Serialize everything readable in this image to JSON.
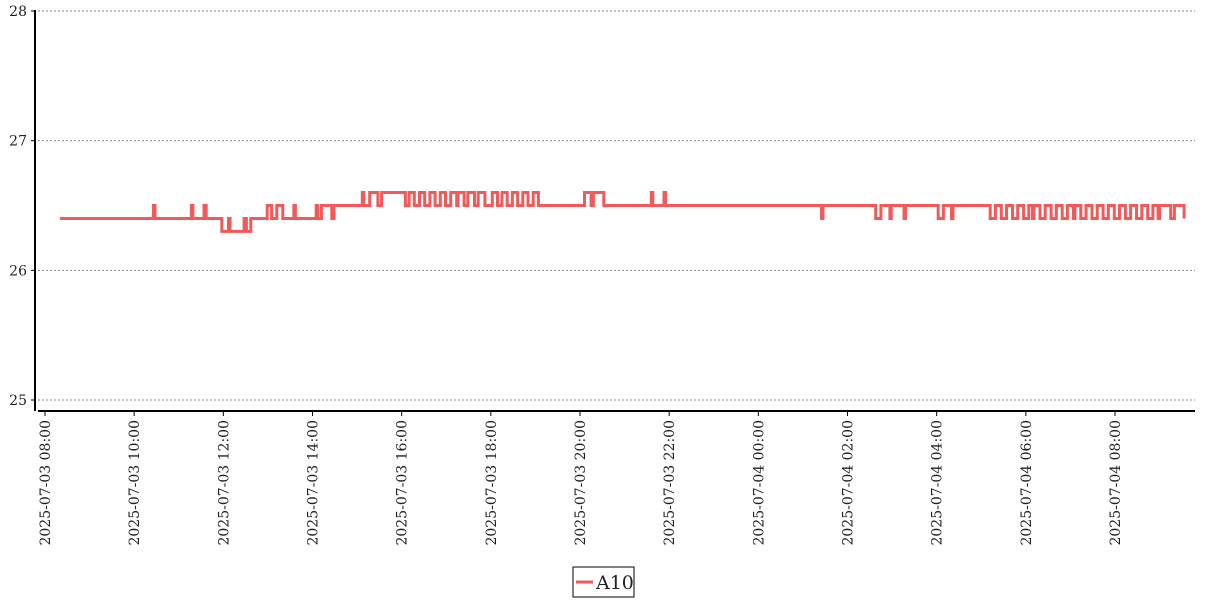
{
  "chart_data": {
    "type": "line",
    "x_axis_type": "datetime",
    "xlim": [
      "2025-07-03 07:55",
      "2025-07-04 09:55"
    ],
    "ylim": [
      24.92,
      28
    ],
    "y_ticks": [
      25,
      26,
      27,
      28
    ],
    "y_tick_labels": [
      "25",
      "26",
      "27",
      "28"
    ],
    "x_ticks": [
      "2025-07-03 08:00",
      "2025-07-03 10:00",
      "2025-07-03 12:00",
      "2025-07-03 14:00",
      "2025-07-03 16:00",
      "2025-07-03 18:00",
      "2025-07-03 20:00",
      "2025-07-03 22:00",
      "2025-07-04 00:00",
      "2025-07-04 02:00",
      "2025-07-04 04:00",
      "2025-07-04 06:00",
      "2025-07-04 08:00"
    ],
    "x_tick_labels": [
      "2025-07-03 08:00",
      "2025-07-03 10:00",
      "2025-07-03 12:00",
      "2025-07-03 14:00",
      "2025-07-03 16:00",
      "2025-07-03 18:00",
      "2025-07-03 20:00",
      "2025-07-03 22:00",
      "2025-07-04 00:00",
      "2025-07-04 02:00",
      "2025-07-04 04:00",
      "2025-07-04 06:00",
      "2025-07-04 08:00"
    ],
    "grid": {
      "y": true,
      "x": false,
      "style": "dotted"
    },
    "legend_position": "bottom-center",
    "series": [
      {
        "name": "A10",
        "color": "#f05a5a",
        "points": [
          [
            "2025-07-03 08:20",
            26.4
          ],
          [
            "2025-07-03 10:26",
            26.4
          ],
          [
            "2025-07-03 10:26",
            26.5
          ],
          [
            "2025-07-03 10:28",
            26.5
          ],
          [
            "2025-07-03 10:28",
            26.4
          ],
          [
            "2025-07-03 11:17",
            26.4
          ],
          [
            "2025-07-03 11:17",
            26.5
          ],
          [
            "2025-07-03 11:19",
            26.5
          ],
          [
            "2025-07-03 11:19",
            26.4
          ],
          [
            "2025-07-03 11:34",
            26.4
          ],
          [
            "2025-07-03 11:34",
            26.5
          ],
          [
            "2025-07-03 11:37",
            26.5
          ],
          [
            "2025-07-03 11:37",
            26.4
          ],
          [
            "2025-07-03 11:58",
            26.4
          ],
          [
            "2025-07-03 11:58",
            26.3
          ],
          [
            "2025-07-03 12:07",
            26.3
          ],
          [
            "2025-07-03 12:07",
            26.4
          ],
          [
            "2025-07-03 12:09",
            26.4
          ],
          [
            "2025-07-03 12:09",
            26.3
          ],
          [
            "2025-07-03 12:28",
            26.3
          ],
          [
            "2025-07-03 12:28",
            26.4
          ],
          [
            "2025-07-03 12:31",
            26.4
          ],
          [
            "2025-07-03 12:31",
            26.3
          ],
          [
            "2025-07-03 12:37",
            26.3
          ],
          [
            "2025-07-03 12:37",
            26.4
          ],
          [
            "2025-07-03 12:59",
            26.4
          ],
          [
            "2025-07-03 12:59",
            26.5
          ],
          [
            "2025-07-03 13:05",
            26.5
          ],
          [
            "2025-07-03 13:05",
            26.4
          ],
          [
            "2025-07-03 13:12",
            26.4
          ],
          [
            "2025-07-03 13:12",
            26.5
          ],
          [
            "2025-07-03 13:20",
            26.5
          ],
          [
            "2025-07-03 13:20",
            26.4
          ],
          [
            "2025-07-03 13:35",
            26.4
          ],
          [
            "2025-07-03 13:35",
            26.5
          ],
          [
            "2025-07-03 13:37",
            26.5
          ],
          [
            "2025-07-03 13:37",
            26.4
          ],
          [
            "2025-07-03 14:05",
            26.4
          ],
          [
            "2025-07-03 14:05",
            26.5
          ],
          [
            "2025-07-03 14:07",
            26.5
          ],
          [
            "2025-07-03 14:07",
            26.4
          ],
          [
            "2025-07-03 14:12",
            26.4
          ],
          [
            "2025-07-03 14:12",
            26.5
          ],
          [
            "2025-07-03 14:26",
            26.5
          ],
          [
            "2025-07-03 14:26",
            26.4
          ],
          [
            "2025-07-03 14:29",
            26.4
          ],
          [
            "2025-07-03 14:29",
            26.5
          ],
          [
            "2025-07-03 15:07",
            26.5
          ],
          [
            "2025-07-03 15:07",
            26.6
          ],
          [
            "2025-07-03 15:09",
            26.6
          ],
          [
            "2025-07-03 15:09",
            26.5
          ],
          [
            "2025-07-03 15:17",
            26.5
          ],
          [
            "2025-07-03 15:17",
            26.6
          ],
          [
            "2025-07-03 15:28",
            26.6
          ],
          [
            "2025-07-03 15:28",
            26.5
          ],
          [
            "2025-07-03 15:33",
            26.5
          ],
          [
            "2025-07-03 15:33",
            26.6
          ],
          [
            "2025-07-03 16:05",
            26.6
          ],
          [
            "2025-07-03 16:05",
            26.5
          ],
          [
            "2025-07-03 16:10",
            26.5
          ],
          [
            "2025-07-03 16:10",
            26.6
          ],
          [
            "2025-07-03 16:17",
            26.6
          ],
          [
            "2025-07-03 16:17",
            26.5
          ],
          [
            "2025-07-03 16:24",
            26.5
          ],
          [
            "2025-07-03 16:24",
            26.6
          ],
          [
            "2025-07-03 16:31",
            26.6
          ],
          [
            "2025-07-03 16:31",
            26.5
          ],
          [
            "2025-07-03 16:38",
            26.5
          ],
          [
            "2025-07-03 16:38",
            26.6
          ],
          [
            "2025-07-03 16:45",
            26.6
          ],
          [
            "2025-07-03 16:45",
            26.5
          ],
          [
            "2025-07-03 16:52",
            26.5
          ],
          [
            "2025-07-03 16:52",
            26.6
          ],
          [
            "2025-07-03 16:59",
            26.6
          ],
          [
            "2025-07-03 16:59",
            26.5
          ],
          [
            "2025-07-03 17:06",
            26.5
          ],
          [
            "2025-07-03 17:06",
            26.6
          ],
          [
            "2025-07-03 17:14",
            26.6
          ],
          [
            "2025-07-03 17:14",
            26.5
          ],
          [
            "2025-07-03 17:16",
            26.5
          ],
          [
            "2025-07-03 17:16",
            26.6
          ],
          [
            "2025-07-03 17:24",
            26.6
          ],
          [
            "2025-07-03 17:24",
            26.5
          ],
          [
            "2025-07-03 17:29",
            26.5
          ],
          [
            "2025-07-03 17:29",
            26.6
          ],
          [
            "2025-07-03 17:38",
            26.6
          ],
          [
            "2025-07-03 17:38",
            26.5
          ],
          [
            "2025-07-03 17:43",
            26.5
          ],
          [
            "2025-07-03 17:43",
            26.6
          ],
          [
            "2025-07-03 17:52",
            26.6
          ],
          [
            "2025-07-03 17:52",
            26.5
          ],
          [
            "2025-07-03 18:02",
            26.5
          ],
          [
            "2025-07-03 18:02",
            26.6
          ],
          [
            "2025-07-03 18:09",
            26.6
          ],
          [
            "2025-07-03 18:09",
            26.5
          ],
          [
            "2025-07-03 18:15",
            26.5
          ],
          [
            "2025-07-03 18:15",
            26.6
          ],
          [
            "2025-07-03 18:22",
            26.6
          ],
          [
            "2025-07-03 18:22",
            26.5
          ],
          [
            "2025-07-03 18:29",
            26.5
          ],
          [
            "2025-07-03 18:29",
            26.6
          ],
          [
            "2025-07-03 18:36",
            26.6
          ],
          [
            "2025-07-03 18:36",
            26.5
          ],
          [
            "2025-07-03 18:43",
            26.5
          ],
          [
            "2025-07-03 18:43",
            26.6
          ],
          [
            "2025-07-03 18:50",
            26.6
          ],
          [
            "2025-07-03 18:50",
            26.5
          ],
          [
            "2025-07-03 18:57",
            26.5
          ],
          [
            "2025-07-03 18:57",
            26.6
          ],
          [
            "2025-07-03 19:04",
            26.6
          ],
          [
            "2025-07-03 19:04",
            26.5
          ],
          [
            "2025-07-03 20:06",
            26.5
          ],
          [
            "2025-07-03 20:06",
            26.6
          ],
          [
            "2025-07-03 20:15",
            26.6
          ],
          [
            "2025-07-03 20:15",
            26.5
          ],
          [
            "2025-07-03 20:18",
            26.5
          ],
          [
            "2025-07-03 20:18",
            26.6
          ],
          [
            "2025-07-03 20:32",
            26.6
          ],
          [
            "2025-07-03 20:32",
            26.5
          ],
          [
            "2025-07-03 21:36",
            26.5
          ],
          [
            "2025-07-03 21:36",
            26.6
          ],
          [
            "2025-07-03 21:38",
            26.6
          ],
          [
            "2025-07-03 21:38",
            26.5
          ],
          [
            "2025-07-03 21:53",
            26.5
          ],
          [
            "2025-07-03 21:53",
            26.6
          ],
          [
            "2025-07-03 21:55",
            26.6
          ],
          [
            "2025-07-03 21:55",
            26.5
          ],
          [
            "2025-07-04 01:25",
            26.5
          ],
          [
            "2025-07-04 01:25",
            26.4
          ],
          [
            "2025-07-04 01:27",
            26.4
          ],
          [
            "2025-07-04 01:27",
            26.5
          ],
          [
            "2025-07-04 02:38",
            26.5
          ],
          [
            "2025-07-04 02:38",
            26.4
          ],
          [
            "2025-07-04 02:45",
            26.4
          ],
          [
            "2025-07-04 02:45",
            26.5
          ],
          [
            "2025-07-04 02:57",
            26.5
          ],
          [
            "2025-07-04 02:57",
            26.4
          ],
          [
            "2025-07-04 02:59",
            26.4
          ],
          [
            "2025-07-04 02:59",
            26.5
          ],
          [
            "2025-07-04 03:16",
            26.5
          ],
          [
            "2025-07-04 03:16",
            26.4
          ],
          [
            "2025-07-04 03:18",
            26.4
          ],
          [
            "2025-07-04 03:18",
            26.5
          ],
          [
            "2025-07-04 04:02",
            26.5
          ],
          [
            "2025-07-04 04:02",
            26.4
          ],
          [
            "2025-07-04 04:09",
            26.4
          ],
          [
            "2025-07-04 04:09",
            26.5
          ],
          [
            "2025-07-04 04:20",
            26.5
          ],
          [
            "2025-07-04 04:20",
            26.4
          ],
          [
            "2025-07-04 04:22",
            26.4
          ],
          [
            "2025-07-04 04:22",
            26.5
          ],
          [
            "2025-07-04 05:12",
            26.5
          ],
          [
            "2025-07-04 05:12",
            26.4
          ],
          [
            "2025-07-04 05:19",
            26.4
          ],
          [
            "2025-07-04 05:19",
            26.5
          ],
          [
            "2025-07-04 05:27",
            26.5
          ],
          [
            "2025-07-04 05:27",
            26.4
          ],
          [
            "2025-07-04 05:34",
            26.4
          ],
          [
            "2025-07-04 05:34",
            26.5
          ],
          [
            "2025-07-04 05:42",
            26.5
          ],
          [
            "2025-07-04 05:42",
            26.4
          ],
          [
            "2025-07-04 05:49",
            26.4
          ],
          [
            "2025-07-04 05:49",
            26.5
          ],
          [
            "2025-07-04 05:57",
            26.5
          ],
          [
            "2025-07-04 05:57",
            26.4
          ],
          [
            "2025-07-04 06:04",
            26.4
          ],
          [
            "2025-07-04 06:04",
            26.5
          ],
          [
            "2025-07-04 06:09",
            26.5
          ],
          [
            "2025-07-04 06:09",
            26.4
          ],
          [
            "2025-07-04 06:11",
            26.4
          ],
          [
            "2025-07-04 06:11",
            26.5
          ],
          [
            "2025-07-04 06:19",
            26.5
          ],
          [
            "2025-07-04 06:19",
            26.4
          ],
          [
            "2025-07-04 06:26",
            26.4
          ],
          [
            "2025-07-04 06:26",
            26.5
          ],
          [
            "2025-07-04 06:34",
            26.5
          ],
          [
            "2025-07-04 06:34",
            26.4
          ],
          [
            "2025-07-04 06:41",
            26.4
          ],
          [
            "2025-07-04 06:41",
            26.5
          ],
          [
            "2025-07-04 06:49",
            26.5
          ],
          [
            "2025-07-04 06:49",
            26.4
          ],
          [
            "2025-07-04 06:56",
            26.4
          ],
          [
            "2025-07-04 06:56",
            26.5
          ],
          [
            "2025-07-04 07:04",
            26.5
          ],
          [
            "2025-07-04 07:04",
            26.4
          ],
          [
            "2025-07-04 07:06",
            26.4
          ],
          [
            "2025-07-04 07:06",
            26.5
          ],
          [
            "2025-07-04 07:14",
            26.5
          ],
          [
            "2025-07-04 07:14",
            26.4
          ],
          [
            "2025-07-04 07:21",
            26.4
          ],
          [
            "2025-07-04 07:21",
            26.5
          ],
          [
            "2025-07-04 07:29",
            26.5
          ],
          [
            "2025-07-04 07:29",
            26.4
          ],
          [
            "2025-07-04 07:36",
            26.4
          ],
          [
            "2025-07-04 07:36",
            26.5
          ],
          [
            "2025-07-04 07:44",
            26.5
          ],
          [
            "2025-07-04 07:44",
            26.4
          ],
          [
            "2025-07-04 07:51",
            26.4
          ],
          [
            "2025-07-04 07:51",
            26.5
          ],
          [
            "2025-07-04 07:59",
            26.5
          ],
          [
            "2025-07-04 07:59",
            26.4
          ],
          [
            "2025-07-04 08:06",
            26.4
          ],
          [
            "2025-07-04 08:06",
            26.5
          ],
          [
            "2025-07-04 08:14",
            26.5
          ],
          [
            "2025-07-04 08:14",
            26.4
          ],
          [
            "2025-07-04 08:21",
            26.4
          ],
          [
            "2025-07-04 08:21",
            26.5
          ],
          [
            "2025-07-04 08:29",
            26.5
          ],
          [
            "2025-07-04 08:29",
            26.4
          ],
          [
            "2025-07-04 08:36",
            26.4
          ],
          [
            "2025-07-04 08:36",
            26.5
          ],
          [
            "2025-07-04 08:44",
            26.5
          ],
          [
            "2025-07-04 08:44",
            26.4
          ],
          [
            "2025-07-04 08:51",
            26.4
          ],
          [
            "2025-07-04 08:51",
            26.5
          ],
          [
            "2025-07-04 08:58",
            26.5
          ],
          [
            "2025-07-04 08:58",
            26.4
          ],
          [
            "2025-07-04 09:00",
            26.4
          ],
          [
            "2025-07-04 09:00",
            26.5
          ],
          [
            "2025-07-04 09:15",
            26.5
          ],
          [
            "2025-07-04 09:15",
            26.4
          ],
          [
            "2025-07-04 09:20",
            26.4
          ],
          [
            "2025-07-04 09:20",
            26.5
          ],
          [
            "2025-07-04 09:33",
            26.5
          ],
          [
            "2025-07-04 09:33",
            26.4
          ]
        ]
      }
    ]
  }
}
